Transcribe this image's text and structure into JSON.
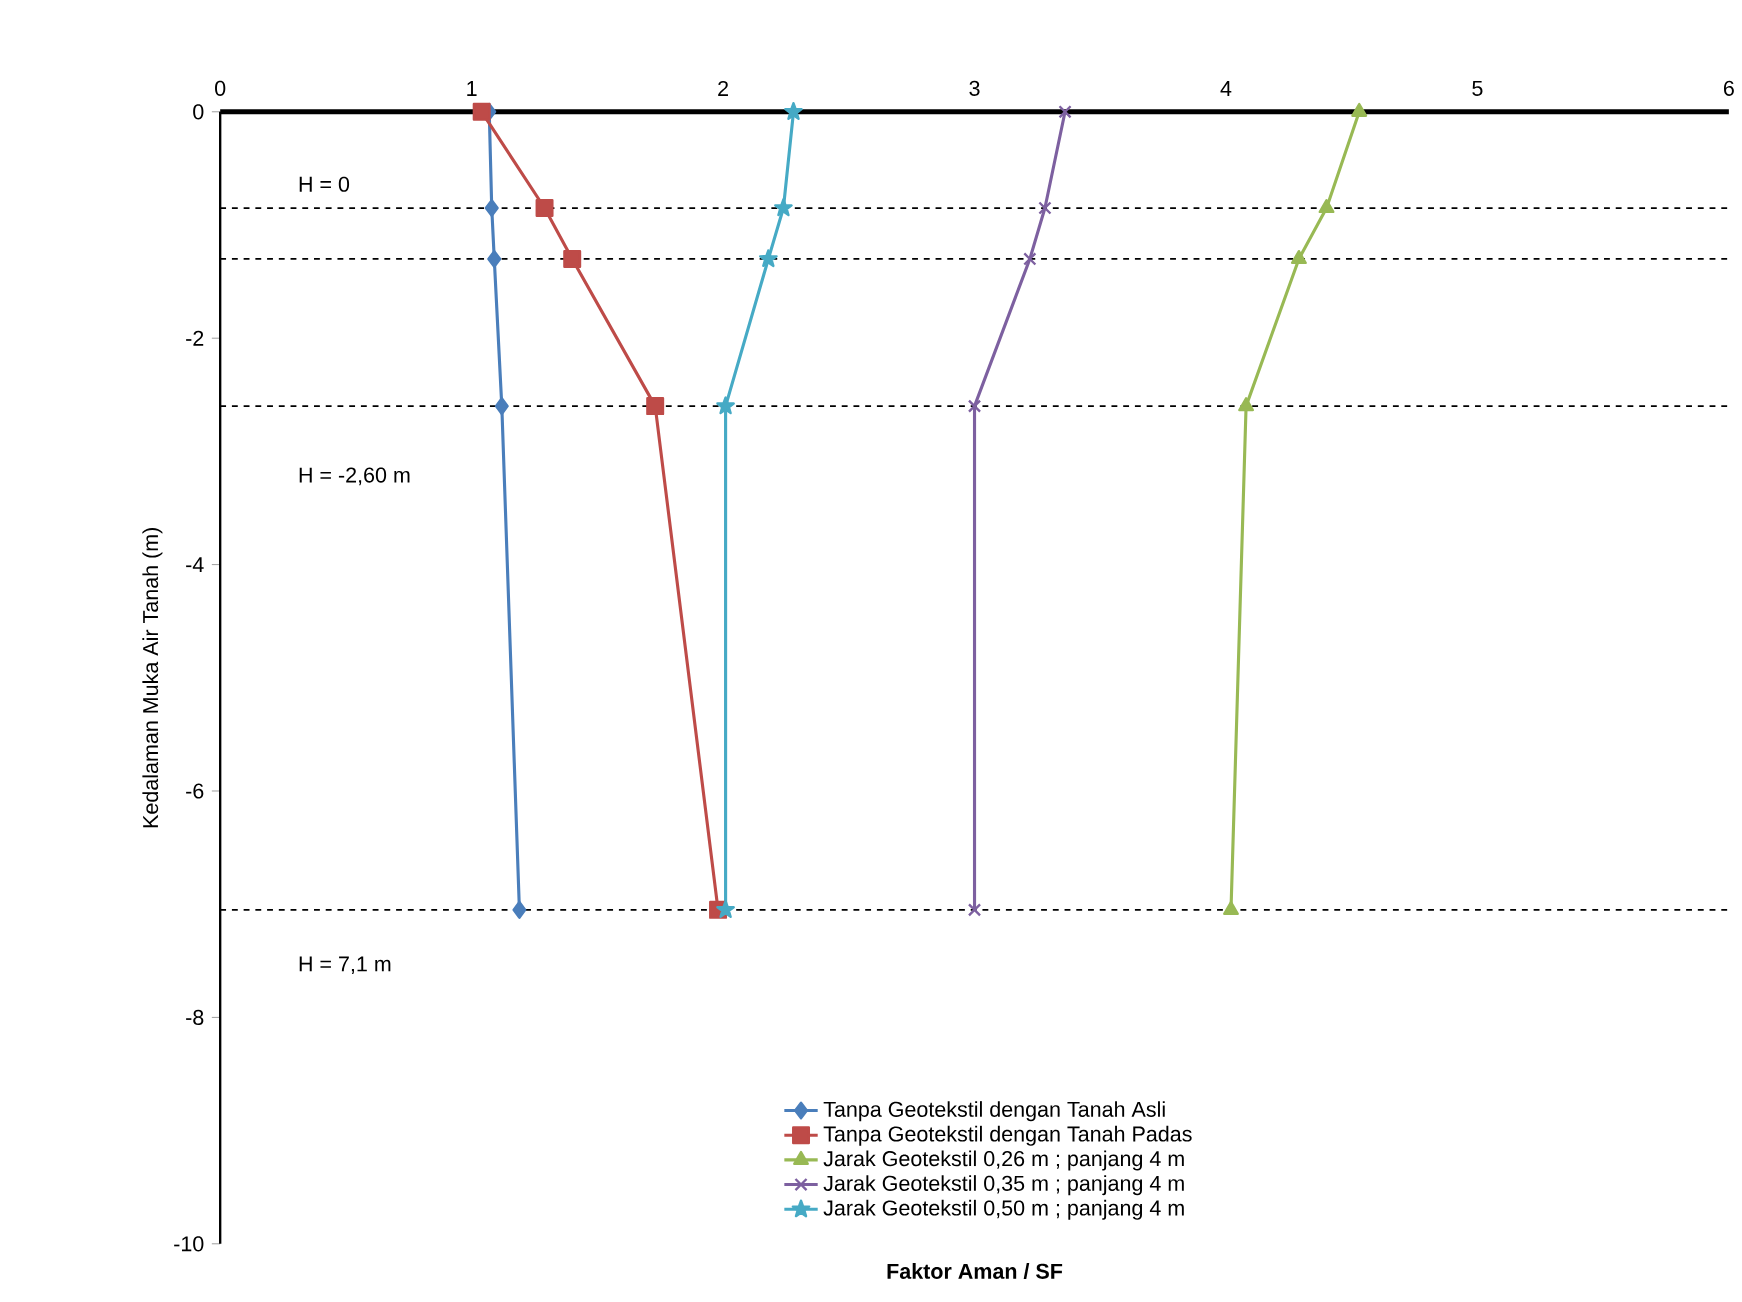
{
  "chart_data": {
    "type": "line",
    "xlabel": "Faktor Aman / SF",
    "ylabel": "Kedalaman Muka Air Tanah (m)",
    "xlim": [
      0,
      6
    ],
    "xticks": [
      0,
      1,
      2,
      3,
      4,
      5,
      6
    ],
    "ylim": [
      -10,
      0
    ],
    "yticks": [
      -10,
      -8,
      -6,
      -4,
      -2,
      0
    ],
    "legend": "bottom",
    "annotations": [
      "H = 0",
      "H = -2,60 m",
      "H = 7,1 m"
    ],
    "grid": false,
    "series": [
      {
        "name": "Tanpa Geotekstil dengan Tanah Asli",
        "color": "#4a7ebb",
        "marker": "diamond",
        "x": [
          1.07,
          1.08,
          1.09,
          1.12,
          1.19
        ],
        "values": [
          0,
          -0.85,
          -1.3,
          -2.6,
          -7.05
        ]
      },
      {
        "name": "Tanpa Geotekstil dengan Tanah Padas",
        "color": "#be4b48",
        "marker": "square",
        "x": [
          1.04,
          1.29,
          1.4,
          1.73,
          1.98
        ],
        "values": [
          0,
          -0.85,
          -1.3,
          -2.6,
          -7.05
        ]
      },
      {
        "name": "Jarak Geotekstil 0,26 m ; panjang 4 m",
        "color": "#98b954",
        "marker": "triangle",
        "x": [
          4.53,
          4.4,
          4.29,
          4.08,
          4.02
        ],
        "values": [
          0,
          -0.85,
          -1.3,
          -2.6,
          -7.05
        ]
      },
      {
        "name": "Jarak Geotekstil 0,35 m ; panjang 4 m",
        "color": "#7d60a0",
        "marker": "cross",
        "x": [
          3.36,
          3.28,
          3.22,
          3.0,
          3.0
        ],
        "values": [
          0,
          -0.85,
          -1.3,
          -2.6,
          -7.05
        ]
      },
      {
        "name": "Jarak Geotekstil 0,50 m ; panjang 4 m",
        "color": "#46aac5",
        "marker": "star",
        "x": [
          2.28,
          2.24,
          2.18,
          2.01,
          2.01
        ],
        "values": [
          0,
          -0.85,
          -1.3,
          -2.6,
          -7.05
        ]
      }
    ],
    "ref_lines": [
      {
        "axis": "y",
        "value": -0.85,
        "line_style": "dashed"
      },
      {
        "axis": "y",
        "value": -1.3,
        "line_style": "dashed"
      },
      {
        "axis": "y",
        "value": -2.6,
        "line_style": "dashed"
      },
      {
        "axis": "y",
        "value": -7.05,
        "line_style": "dashed"
      }
    ]
  }
}
